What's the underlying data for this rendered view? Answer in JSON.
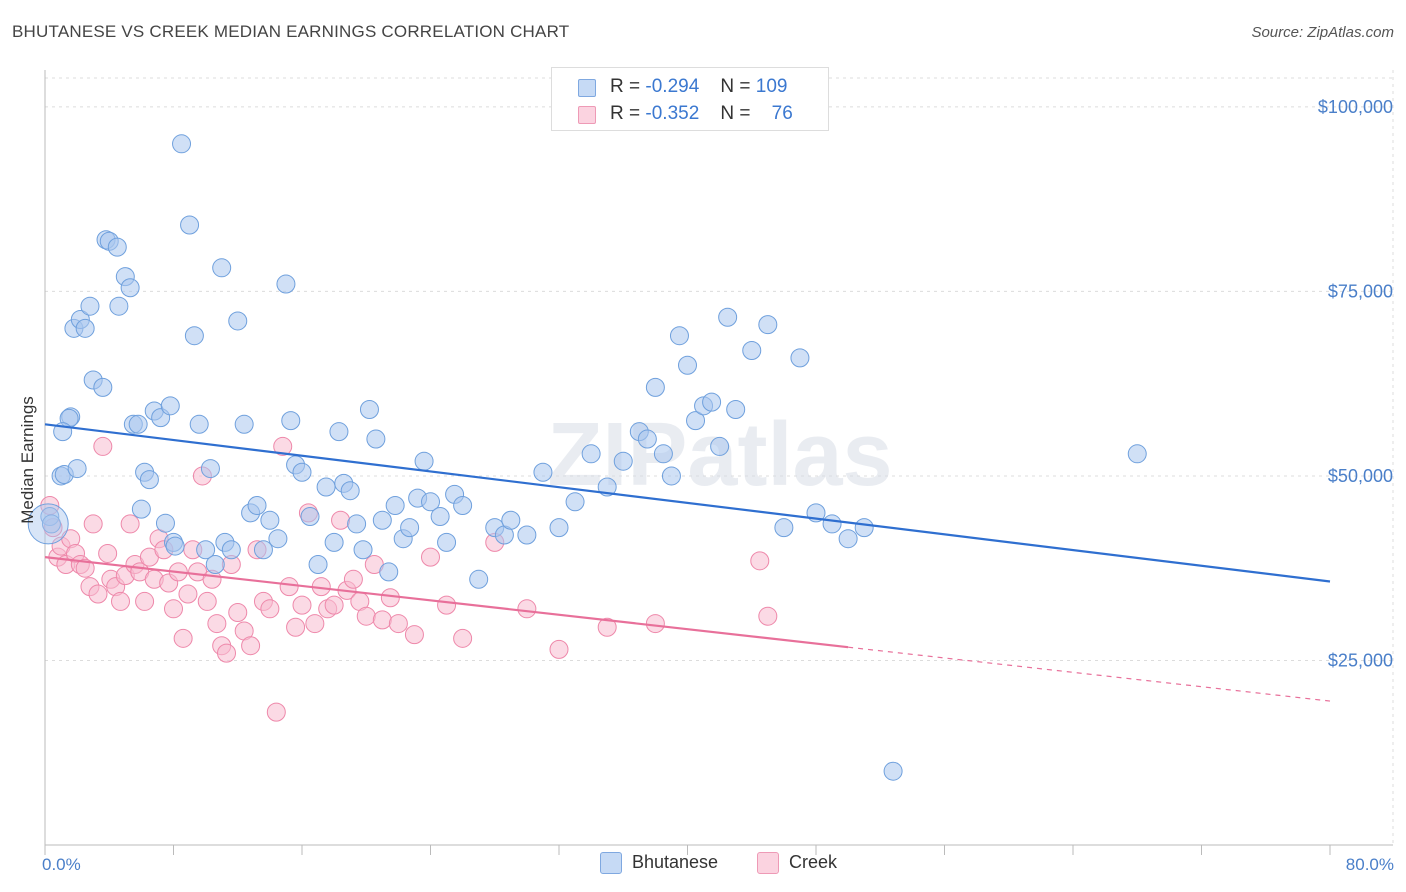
{
  "header": {
    "title": "BHUTANESE VS CREEK MEDIAN EARNINGS CORRELATION CHART",
    "source": "Source: ZipAtlas.com"
  },
  "legend_top": {
    "rows": [
      {
        "r_label": "R =",
        "r_value": "-0.294",
        "n_label": "N =",
        "n_value": "109",
        "color": "#a9c6ee"
      },
      {
        "r_label": "R =",
        "r_value": "-0.352",
        "n_label": "N =",
        "n_value": "76",
        "color": "#f7bcd0"
      }
    ]
  },
  "legend_bottom": [
    {
      "label": "Bhutanese",
      "color": "#a9c6ee"
    },
    {
      "label": "Creek",
      "color": "#f7bcd0"
    }
  ],
  "chart_data": {
    "type": "scatter",
    "title": "BHUTANESE VS CREEK MEDIAN EARNINGS CORRELATION CHART",
    "xlabel": "",
    "ylabel": "Median Earnings",
    "xlim": [
      0,
      80
    ],
    "ylim": [
      0,
      105000
    ],
    "x_tick_labels": [
      "0.0%",
      "80.0%"
    ],
    "y_ticks": [
      25000,
      50000,
      75000,
      100000
    ],
    "y_tick_labels": [
      "$25,000",
      "$50,000",
      "$75,000",
      "$100,000"
    ],
    "grid": true,
    "legend": "top-center",
    "watermark": "ZIPatlas",
    "series": [
      {
        "name": "Bhutanese",
        "color": "#6fa0dd",
        "fill": "#a9c6ee",
        "trend": {
          "x": [
            0,
            80
          ],
          "y": [
            57000,
            35700
          ]
        },
        "points": [
          [
            0.3,
            44500
          ],
          [
            0.4,
            43500
          ],
          [
            1.0,
            50000
          ],
          [
            1.2,
            50200
          ],
          [
            1.6,
            58000
          ],
          [
            1.5,
            57800
          ],
          [
            1.8,
            70000
          ],
          [
            2.2,
            71200
          ],
          [
            2.5,
            70000
          ],
          [
            2.8,
            73000
          ],
          [
            3.0,
            63000
          ],
          [
            3.6,
            62000
          ],
          [
            3.8,
            82000
          ],
          [
            4.0,
            81800
          ],
          [
            4.5,
            81000
          ],
          [
            4.6,
            73000
          ],
          [
            5.0,
            77000
          ],
          [
            5.3,
            75500
          ],
          [
            5.5,
            57000
          ],
          [
            5.8,
            57000
          ],
          [
            6.2,
            50500
          ],
          [
            6.5,
            49500
          ],
          [
            6.8,
            58800
          ],
          [
            7.2,
            57900
          ],
          [
            7.5,
            43600
          ],
          [
            7.8,
            59500
          ],
          [
            8.0,
            41000
          ],
          [
            8.1,
            40500
          ],
          [
            8.5,
            95000
          ],
          [
            9.0,
            84000
          ],
          [
            9.3,
            69000
          ],
          [
            9.6,
            57000
          ],
          [
            10.0,
            40000
          ],
          [
            10.3,
            51000
          ],
          [
            10.6,
            38000
          ],
          [
            11.0,
            78200
          ],
          [
            11.2,
            41000
          ],
          [
            11.6,
            40000
          ],
          [
            12.0,
            71000
          ],
          [
            12.4,
            57000
          ],
          [
            12.8,
            45000
          ],
          [
            13.2,
            46000
          ],
          [
            13.6,
            40000
          ],
          [
            14.0,
            44000
          ],
          [
            14.5,
            41500
          ],
          [
            15.0,
            76000
          ],
          [
            15.3,
            57500
          ],
          [
            15.6,
            51500
          ],
          [
            16.0,
            50500
          ],
          [
            16.5,
            44500
          ],
          [
            17.0,
            38000
          ],
          [
            17.5,
            48500
          ],
          [
            18.0,
            41000
          ],
          [
            18.3,
            56000
          ],
          [
            18.6,
            49000
          ],
          [
            19.0,
            48000
          ],
          [
            19.4,
            43500
          ],
          [
            19.8,
            40000
          ],
          [
            20.2,
            59000
          ],
          [
            20.6,
            55000
          ],
          [
            21.0,
            44000
          ],
          [
            21.4,
            37000
          ],
          [
            21.8,
            46000
          ],
          [
            22.3,
            41500
          ],
          [
            22.7,
            43000
          ],
          [
            23.2,
            47000
          ],
          [
            23.6,
            52000
          ],
          [
            24.0,
            46500
          ],
          [
            24.6,
            44500
          ],
          [
            25.0,
            41000
          ],
          [
            25.5,
            47500
          ],
          [
            26.0,
            46000
          ],
          [
            27.0,
            36000
          ],
          [
            28.0,
            43000
          ],
          [
            28.6,
            42000
          ],
          [
            29.0,
            44000
          ],
          [
            30.0,
            42000
          ],
          [
            31.0,
            50500
          ],
          [
            32.0,
            43000
          ],
          [
            33.0,
            46500
          ],
          [
            34.0,
            53000
          ],
          [
            35.0,
            48500
          ],
          [
            36.0,
            52000
          ],
          [
            37.0,
            56000
          ],
          [
            37.5,
            55000
          ],
          [
            38.0,
            62000
          ],
          [
            38.5,
            53000
          ],
          [
            39.0,
            50000
          ],
          [
            39.5,
            69000
          ],
          [
            40.0,
            65000
          ],
          [
            40.5,
            57500
          ],
          [
            41.0,
            59500
          ],
          [
            41.5,
            60000
          ],
          [
            42.0,
            54000
          ],
          [
            42.5,
            71500
          ],
          [
            43.0,
            59000
          ],
          [
            44.0,
            67000
          ],
          [
            45.0,
            70500
          ],
          [
            46.0,
            43000
          ],
          [
            47.0,
            66000
          ],
          [
            48.0,
            45000
          ],
          [
            49.0,
            43500
          ],
          [
            50.0,
            41500
          ],
          [
            51.0,
            43000
          ],
          [
            52.8,
            10000
          ],
          [
            68.0,
            53000
          ],
          [
            1.1,
            56000
          ],
          [
            2.0,
            51000
          ],
          [
            6.0,
            45500
          ]
        ]
      },
      {
        "name": "Creek",
        "color": "#ee88aa",
        "fill": "#f7bcd0",
        "trend": {
          "x": [
            0,
            50
          ],
          "y": [
            39000,
            26800
          ]
        },
        "trend_dashed": {
          "x": [
            50,
            80
          ],
          "y": [
            26800,
            19500
          ]
        },
        "points": [
          [
            0.3,
            46000
          ],
          [
            0.5,
            43000
          ],
          [
            0.8,
            39000
          ],
          [
            1.0,
            40500
          ],
          [
            1.3,
            38000
          ],
          [
            1.6,
            41500
          ],
          [
            1.9,
            39500
          ],
          [
            2.2,
            38000
          ],
          [
            2.5,
            37500
          ],
          [
            2.8,
            35000
          ],
          [
            3.0,
            43500
          ],
          [
            3.3,
            34000
          ],
          [
            3.6,
            54000
          ],
          [
            3.9,
            39500
          ],
          [
            4.1,
            36000
          ],
          [
            4.4,
            35000
          ],
          [
            4.7,
            33000
          ],
          [
            5.0,
            36500
          ],
          [
            5.3,
            43500
          ],
          [
            5.6,
            38000
          ],
          [
            5.9,
            37000
          ],
          [
            6.2,
            33000
          ],
          [
            6.5,
            39000
          ],
          [
            6.8,
            36000
          ],
          [
            7.1,
            41500
          ],
          [
            7.4,
            40000
          ],
          [
            7.7,
            35500
          ],
          [
            8.0,
            32000
          ],
          [
            8.3,
            37000
          ],
          [
            8.6,
            28000
          ],
          [
            8.9,
            34000
          ],
          [
            9.2,
            40000
          ],
          [
            9.5,
            37000
          ],
          [
            9.8,
            50000
          ],
          [
            10.1,
            33000
          ],
          [
            10.4,
            36000
          ],
          [
            10.7,
            30000
          ],
          [
            11.0,
            27000
          ],
          [
            11.3,
            26000
          ],
          [
            11.6,
            38000
          ],
          [
            12.0,
            31500
          ],
          [
            12.4,
            29000
          ],
          [
            12.8,
            27000
          ],
          [
            13.2,
            40000
          ],
          [
            13.6,
            33000
          ],
          [
            14.0,
            32000
          ],
          [
            14.4,
            18000
          ],
          [
            14.8,
            54000
          ],
          [
            15.2,
            35000
          ],
          [
            15.6,
            29500
          ],
          [
            16.0,
            32500
          ],
          [
            16.4,
            45000
          ],
          [
            16.8,
            30000
          ],
          [
            17.2,
            35000
          ],
          [
            17.6,
            32000
          ],
          [
            18.0,
            32500
          ],
          [
            18.4,
            44000
          ],
          [
            18.8,
            34500
          ],
          [
            19.2,
            36000
          ],
          [
            19.6,
            33000
          ],
          [
            20.0,
            31000
          ],
          [
            20.5,
            38000
          ],
          [
            21.0,
            30500
          ],
          [
            21.5,
            33500
          ],
          [
            22.0,
            30000
          ],
          [
            23.0,
            28500
          ],
          [
            24.0,
            39000
          ],
          [
            25.0,
            32500
          ],
          [
            26.0,
            28000
          ],
          [
            28.0,
            41000
          ],
          [
            30.0,
            32000
          ],
          [
            32.0,
            26500
          ],
          [
            35.0,
            29500
          ],
          [
            38.0,
            30000
          ],
          [
            44.5,
            38500
          ],
          [
            45.0,
            31000
          ]
        ]
      }
    ]
  }
}
